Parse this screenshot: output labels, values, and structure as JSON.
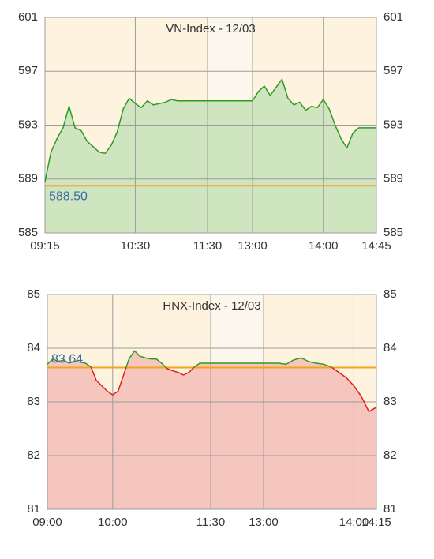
{
  "chart_data": [
    {
      "type": "area",
      "title": "VN-Index - 12/03",
      "x": [
        "09:15",
        "09:20",
        "09:25",
        "09:30",
        "09:35",
        "09:40",
        "09:45",
        "09:50",
        "09:55",
        "10:00",
        "10:05",
        "10:10",
        "10:15",
        "10:20",
        "10:25",
        "10:30",
        "10:35",
        "10:40",
        "10:45",
        "10:50",
        "10:55",
        "11:00",
        "11:05",
        "11:10",
        "11:15",
        "11:20",
        "11:25",
        "11:30",
        "13:00",
        "13:05",
        "13:10",
        "13:15",
        "13:20",
        "13:25",
        "13:30",
        "13:35",
        "13:40",
        "13:45",
        "13:50",
        "13:55",
        "14:00",
        "14:05",
        "14:10",
        "14:15",
        "14:20",
        "14:25",
        "14:30",
        "14:35",
        "14:40",
        "14:45"
      ],
      "values": [
        588.8,
        591.0,
        592.0,
        592.8,
        594.4,
        592.8,
        592.6,
        591.8,
        591.4,
        591.0,
        590.9,
        591.5,
        592.5,
        594.2,
        595.0,
        594.6,
        594.3,
        594.8,
        594.5,
        594.6,
        594.7,
        594.9,
        594.8,
        594.8,
        594.8,
        594.8,
        594.8,
        594.8,
        594.8,
        595.5,
        595.9,
        595.2,
        595.8,
        596.4,
        595.0,
        594.5,
        594.7,
        594.1,
        594.4,
        594.3,
        594.9,
        594.2,
        593.0,
        592.0,
        591.3,
        592.4,
        592.8,
        592.8,
        592.8,
        592.8
      ],
      "ylim": [
        585,
        601
      ],
      "yticks": [
        585,
        589,
        593,
        597,
        601
      ],
      "xticks": [
        "09:15",
        "10:30",
        "11:30",
        "13:00",
        "14:00",
        "14:45"
      ],
      "break": [
        "11:30",
        "13:00"
      ],
      "reference": {
        "value": 588.5,
        "label": "588.50"
      },
      "up_color": "#2e9a22",
      "down_color": "#e3201b",
      "up_fill": "#cfe5c0",
      "down_fill": "#f5c6bd",
      "reference_color": "#f5a31e",
      "background": "#fdf3df",
      "break_color": "#fcf7ec",
      "grid": true
    },
    {
      "type": "area",
      "title": "HNX-Index - 12/03",
      "x": [
        "09:00",
        "09:05",
        "09:10",
        "09:15",
        "09:20",
        "09:25",
        "09:30",
        "09:35",
        "09:40",
        "09:45",
        "09:50",
        "09:55",
        "10:00",
        "10:05",
        "10:10",
        "10:15",
        "10:20",
        "10:25",
        "10:30",
        "10:35",
        "10:40",
        "10:45",
        "10:50",
        "10:55",
        "11:00",
        "11:05",
        "11:10",
        "11:15",
        "11:20",
        "11:25",
        "11:30",
        "13:00",
        "13:05",
        "13:10",
        "13:15",
        "13:20",
        "13:25",
        "13:30",
        "13:35",
        "13:40",
        "13:45",
        "13:50",
        "13:55",
        "14:00",
        "14:05",
        "14:10",
        "14:15"
      ],
      "values": [
        83.7,
        83.8,
        83.75,
        83.78,
        83.72,
        83.76,
        83.74,
        83.72,
        83.65,
        83.4,
        83.3,
        83.2,
        83.13,
        83.2,
        83.5,
        83.8,
        83.95,
        83.85,
        83.82,
        83.8,
        83.8,
        83.72,
        83.62,
        83.58,
        83.55,
        83.5,
        83.55,
        83.65,
        83.72,
        83.72,
        83.72,
        83.72,
        83.72,
        83.72,
        83.7,
        83.78,
        83.82,
        83.75,
        83.72,
        83.7,
        83.65,
        83.55,
        83.45,
        83.3,
        83.1,
        82.82,
        82.9
      ],
      "ylim": [
        81,
        85
      ],
      "yticks": [
        81,
        82,
        83,
        84,
        85
      ],
      "xticks": [
        "09:00",
        "10:00",
        "11:30",
        "13:00",
        "14:00",
        "14:15"
      ],
      "break": [
        "11:30",
        "13:00"
      ],
      "reference": {
        "value": 83.64,
        "label": "83.64"
      },
      "up_color": "#2e9a22",
      "down_color": "#e3201b",
      "up_fill": "#cfe5c0",
      "down_fill": "#f5c6bd",
      "reference_color": "#f5a31e",
      "background": "#fdf3df",
      "break_color": "#fcf7ec",
      "grid": true
    }
  ]
}
